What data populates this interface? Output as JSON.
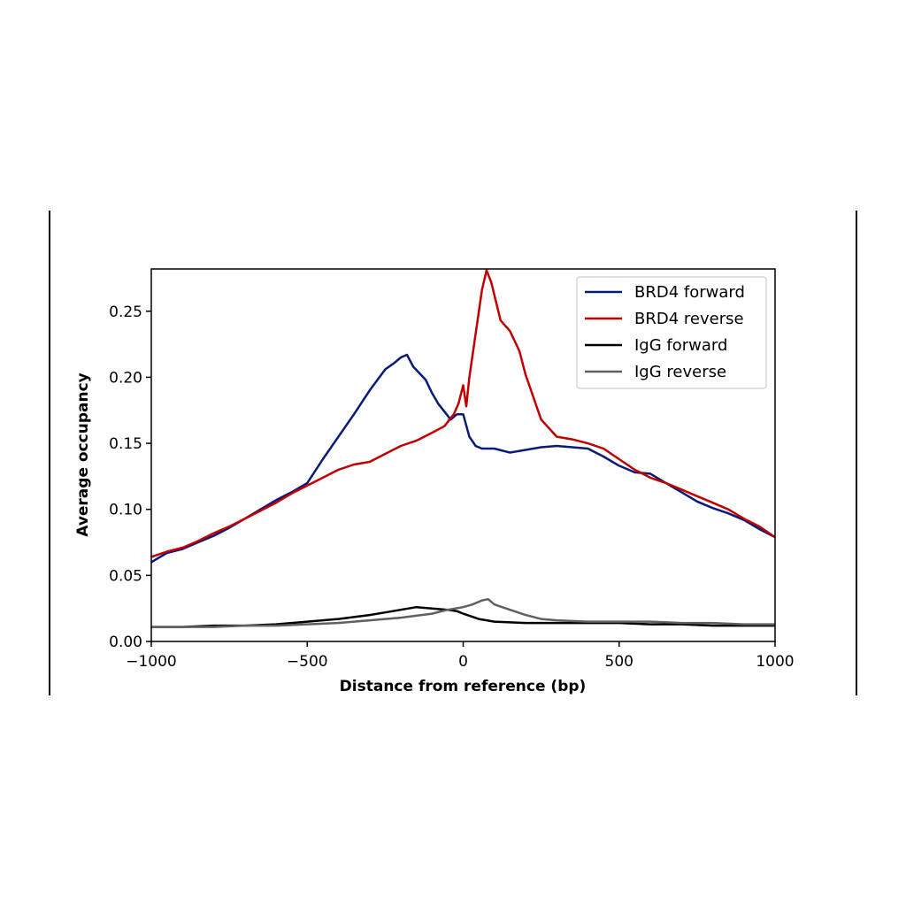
{
  "chart_data": {
    "type": "line",
    "xlabel": "Distance from reference (bp)",
    "ylabel": "Average occupancy",
    "xlim": [
      -1000,
      1000
    ],
    "ylim": [
      0,
      0.282
    ],
    "xticks": [
      -1000,
      -500,
      0,
      500,
      1000
    ],
    "xtick_labels": [
      "−1000",
      "−500",
      "0",
      "500",
      "1000"
    ],
    "yticks": [
      0.0,
      0.05,
      0.1,
      0.15,
      0.2,
      0.25
    ],
    "ytick_labels": [
      "0.00",
      "0.05",
      "0.10",
      "0.15",
      "0.20",
      "0.25"
    ],
    "grid": false,
    "legend_position": "top-right",
    "series": [
      {
        "name": "BRD4 forward",
        "color": "#0a1a7a",
        "x": [
          -1000,
          -950,
          -900,
          -850,
          -800,
          -750,
          -700,
          -650,
          -600,
          -550,
          -500,
          -450,
          -400,
          -350,
          -300,
          -250,
          -220,
          -200,
          -180,
          -160,
          -140,
          -120,
          -100,
          -80,
          -60,
          -40,
          -20,
          0,
          20,
          40,
          60,
          100,
          150,
          200,
          250,
          300,
          350,
          400,
          450,
          500,
          550,
          600,
          650,
          700,
          750,
          800,
          850,
          900,
          950,
          1000
        ],
        "y": [
          0.06,
          0.067,
          0.07,
          0.075,
          0.08,
          0.086,
          0.093,
          0.1,
          0.107,
          0.113,
          0.12,
          0.138,
          0.155,
          0.172,
          0.19,
          0.206,
          0.211,
          0.215,
          0.217,
          0.208,
          0.203,
          0.198,
          0.188,
          0.18,
          0.174,
          0.168,
          0.172,
          0.172,
          0.155,
          0.148,
          0.146,
          0.146,
          0.143,
          0.145,
          0.147,
          0.148,
          0.147,
          0.146,
          0.14,
          0.133,
          0.128,
          0.127,
          0.12,
          0.113,
          0.106,
          0.101,
          0.097,
          0.092,
          0.085,
          0.079
        ]
      },
      {
        "name": "BRD4 reverse",
        "color": "#c00000",
        "x": [
          -1000,
          -950,
          -900,
          -850,
          -800,
          -750,
          -700,
          -650,
          -600,
          -550,
          -500,
          -450,
          -400,
          -350,
          -300,
          -250,
          -200,
          -150,
          -100,
          -60,
          -30,
          -15,
          0,
          10,
          20,
          40,
          60,
          75,
          90,
          120,
          150,
          180,
          200,
          250,
          300,
          350,
          400,
          450,
          500,
          550,
          600,
          650,
          700,
          750,
          800,
          850,
          900,
          950,
          1000
        ],
        "y": [
          0.064,
          0.068,
          0.071,
          0.076,
          0.082,
          0.087,
          0.093,
          0.099,
          0.105,
          0.112,
          0.118,
          0.124,
          0.13,
          0.134,
          0.136,
          0.142,
          0.148,
          0.152,
          0.158,
          0.163,
          0.172,
          0.18,
          0.194,
          0.178,
          0.2,
          0.233,
          0.266,
          0.281,
          0.272,
          0.243,
          0.235,
          0.22,
          0.202,
          0.168,
          0.155,
          0.153,
          0.15,
          0.146,
          0.138,
          0.13,
          0.124,
          0.12,
          0.115,
          0.11,
          0.105,
          0.1,
          0.093,
          0.087,
          0.079
        ]
      },
      {
        "name": "IgG forward",
        "color": "#000000",
        "x": [
          -1000,
          -900,
          -800,
          -700,
          -600,
          -500,
          -400,
          -300,
          -250,
          -200,
          -150,
          -100,
          -50,
          -20,
          0,
          50,
          100,
          200,
          300,
          400,
          500,
          600,
          700,
          800,
          900,
          1000
        ],
        "y": [
          0.011,
          0.011,
          0.012,
          0.012,
          0.013,
          0.015,
          0.017,
          0.02,
          0.022,
          0.024,
          0.026,
          0.025,
          0.024,
          0.023,
          0.021,
          0.017,
          0.015,
          0.014,
          0.014,
          0.014,
          0.014,
          0.013,
          0.013,
          0.012,
          0.012,
          0.012
        ]
      },
      {
        "name": "IgG reverse",
        "color": "#606060",
        "x": [
          -1000,
          -900,
          -800,
          -700,
          -600,
          -500,
          -400,
          -300,
          -200,
          -100,
          -50,
          0,
          30,
          60,
          80,
          100,
          150,
          200,
          250,
          300,
          400,
          500,
          600,
          700,
          800,
          900,
          1000
        ],
        "y": [
          0.011,
          0.011,
          0.011,
          0.012,
          0.012,
          0.013,
          0.014,
          0.016,
          0.018,
          0.021,
          0.024,
          0.026,
          0.028,
          0.031,
          0.032,
          0.028,
          0.024,
          0.02,
          0.017,
          0.016,
          0.015,
          0.015,
          0.015,
          0.014,
          0.014,
          0.013,
          0.013
        ]
      }
    ]
  }
}
